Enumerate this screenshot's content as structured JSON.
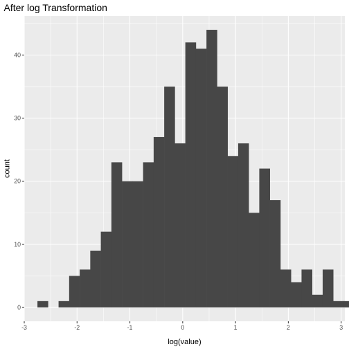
{
  "chart_data": {
    "type": "bar",
    "title": "After log Transformation",
    "xlabel": "log(value)",
    "ylabel": "count",
    "x_ticks": [
      -3,
      -2,
      -1,
      0,
      1,
      2,
      3
    ],
    "y_ticks": [
      0,
      10,
      20,
      30,
      40
    ],
    "xlim": [
      -3.0,
      3.07
    ],
    "ylim": [
      -2.2,
      46.2
    ],
    "bin_width": 0.2,
    "bins": [
      {
        "start": -2.75,
        "count": 1
      },
      {
        "start": -2.55,
        "count": 0
      },
      {
        "start": -2.35,
        "count": 1
      },
      {
        "start": -2.15,
        "count": 5
      },
      {
        "start": -1.95,
        "count": 6
      },
      {
        "start": -1.75,
        "count": 9
      },
      {
        "start": -1.55,
        "count": 12
      },
      {
        "start": -1.35,
        "count": 23
      },
      {
        "start": -1.15,
        "count": 20
      },
      {
        "start": -0.95,
        "count": 20
      },
      {
        "start": -0.75,
        "count": 23
      },
      {
        "start": -0.55,
        "count": 27
      },
      {
        "start": -0.35,
        "count": 35
      },
      {
        "start": -0.15,
        "count": 26
      },
      {
        "start": 0.05,
        "count": 42
      },
      {
        "start": 0.25,
        "count": 41
      },
      {
        "start": 0.45,
        "count": 44
      },
      {
        "start": 0.65,
        "count": 35
      },
      {
        "start": 0.85,
        "count": 24
      },
      {
        "start": 1.05,
        "count": 26
      },
      {
        "start": 1.25,
        "count": 15
      },
      {
        "start": 1.45,
        "count": 22
      },
      {
        "start": 1.65,
        "count": 17
      },
      {
        "start": 1.85,
        "count": 6
      },
      {
        "start": 2.05,
        "count": 4
      },
      {
        "start": 2.25,
        "count": 6
      },
      {
        "start": 2.45,
        "count": 2
      },
      {
        "start": 2.65,
        "count": 6
      },
      {
        "start": 2.85,
        "count": 1
      },
      {
        "start": 3.05,
        "count": 1
      }
    ],
    "grid": true,
    "colors": {
      "panel": "#ebebeb",
      "grid_major": "#ffffff",
      "bar_fill": "#474747"
    }
  }
}
